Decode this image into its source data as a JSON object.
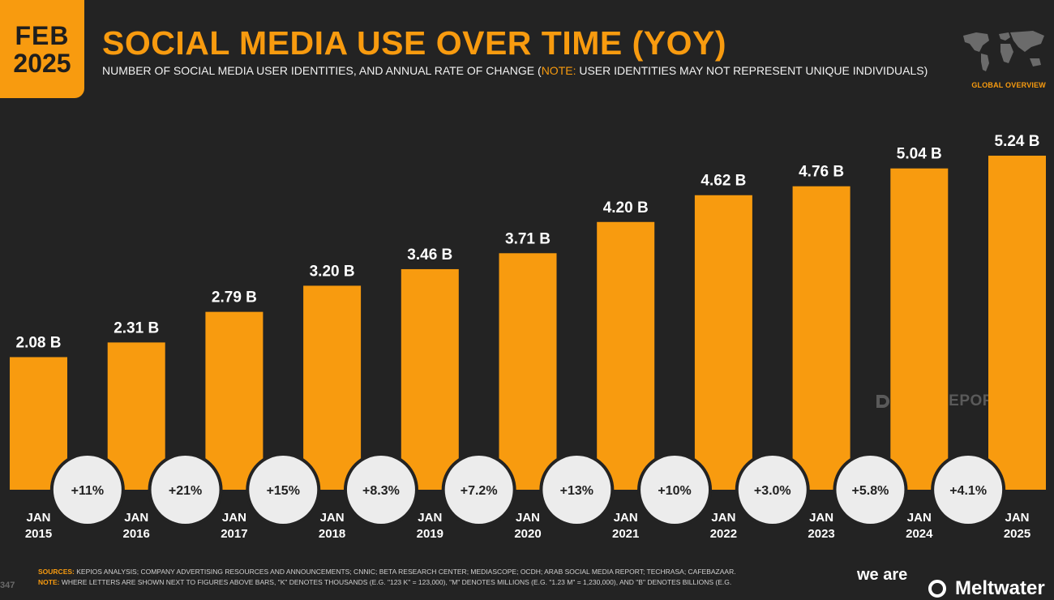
{
  "header": {
    "month": "FEB",
    "year": "2025",
    "title": "SOCIAL MEDIA USE OVER TIME (YOY)",
    "subtitle_main": "NUMBER OF SOCIAL MEDIA USER IDENTITIES, AND ANNUAL RATE OF CHANGE (",
    "subtitle_note_label": "NOTE:",
    "subtitle_note_text": " USER IDENTITIES MAY NOT REPRESENT UNIQUE INDIVIDUALS)",
    "region_label": "GLOBAL OVERVIEW"
  },
  "watermark": "DATAREPORTAL",
  "footer": {
    "sources_label": "SOURCES:",
    "sources_text": " KEPIOS ANALYSIS; COMPANY ADVERTISING RESOURCES AND ANNOUNCEMENTS; CNNIC; BETA RESEARCH CENTER; MEDIASCOPE; OCDH; ARAB SOCIAL MEDIA REPORT; TECHRASA; CAFEBAZAAR.",
    "note_label": "NOTE:",
    "note_text": " WHERE LETTERS ARE SHOWN NEXT TO FIGURES ABOVE BARS, \"K\" DENOTES THOUSANDS (E.G. \"123 K\" = 123,000), \"M\" DENOTES MILLIONS (E.G. \"1.23 M\" = 1,230,000), AND \"B\" DENOTES BILLIONS (E.G.",
    "page_number": "347",
    "brand_we": "we are",
    "brand_meltwater": "Meltwater"
  },
  "colors": {
    "background": "#232323",
    "accent": "#f89b0f",
    "bubble": "#ececec",
    "bubble_text": "#222222"
  },
  "chart_data": {
    "type": "bar",
    "categories": [
      "JAN 2015",
      "JAN 2016",
      "JAN 2017",
      "JAN 2018",
      "JAN 2019",
      "JAN 2020",
      "JAN 2021",
      "JAN 2022",
      "JAN 2023",
      "JAN 2024",
      "JAN 2025"
    ],
    "values": [
      2.08,
      2.31,
      2.79,
      3.2,
      3.46,
      3.71,
      4.2,
      4.62,
      4.76,
      5.04,
      5.24
    ],
    "value_labels": [
      "2.08 B",
      "2.31 B",
      "2.79 B",
      "3.20 B",
      "3.46 B",
      "3.71 B",
      "4.20 B",
      "4.62 B",
      "4.76 B",
      "5.04 B",
      "5.24 B"
    ],
    "yoy_changes": [
      "+11%",
      "+21%",
      "+15%",
      "+8.3%",
      "+7.2%",
      "+13%",
      "+10%",
      "+3.0%",
      "+5.8%",
      "+4.1%"
    ],
    "unit": "B",
    "ylim": [
      0,
      5.24
    ],
    "grid": false,
    "legend": "none"
  }
}
